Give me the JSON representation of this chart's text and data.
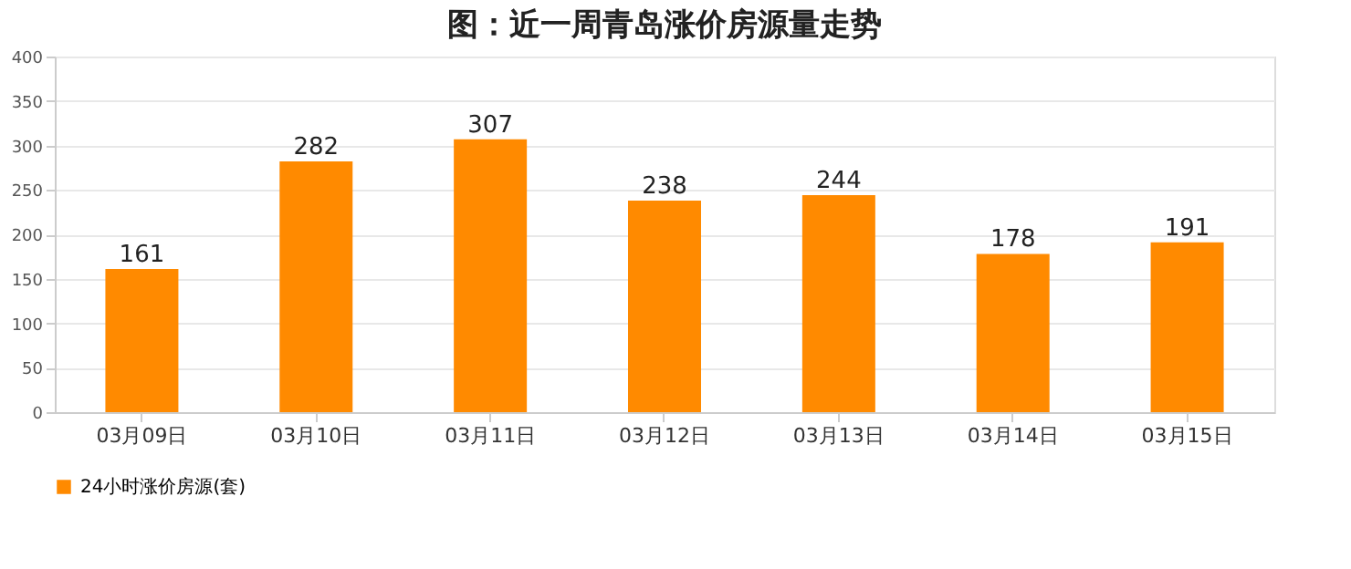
{
  "chart_data": {
    "type": "bar",
    "title": "图：近一周青岛涨价房源量走势",
    "categories": [
      "03月09日",
      "03月10日",
      "03月11日",
      "03月12日",
      "03月13日",
      "03月14日",
      "03月15日"
    ],
    "series": [
      {
        "name": "24小时涨价房源(套)",
        "color": "#ff8a00",
        "values": [
          161,
          282,
          307,
          238,
          244,
          178,
          191
        ]
      }
    ],
    "ylim": [
      0,
      400
    ],
    "yticks": [
      0,
      50,
      100,
      150,
      200,
      250,
      300,
      350,
      400
    ],
    "grid": "y",
    "legend": "bottom",
    "data_labels": true
  }
}
